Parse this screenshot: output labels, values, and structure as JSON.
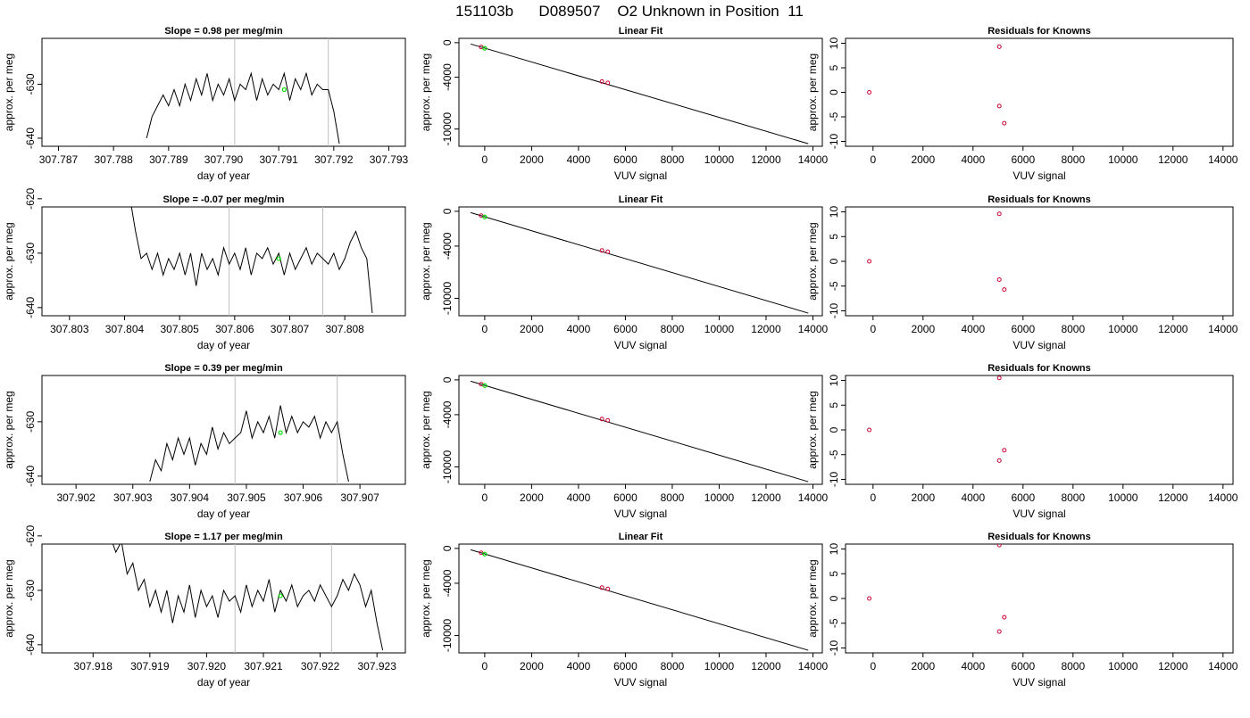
{
  "page_title": "151103b      D089507    O2 Unknown in Position  11",
  "colors": {
    "trace": "#000000",
    "marker_green": "#00dd00",
    "marker_red": "#cc0033",
    "vline": "#bdbdbd",
    "fit_line": "#000000"
  },
  "chart_data": [
    {
      "type": "line",
      "panel": "trace",
      "row": 1,
      "title": "Slope =  0.98  per meg/min",
      "xlabel": "day of year",
      "ylabel": "approx. per meg",
      "xlim": [
        307.7867,
        307.7933
      ],
      "ylim": [
        -641.5,
        -621.5
      ],
      "x_ticks": [
        "307.787",
        "307.788",
        "307.789",
        "307.790",
        "307.791",
        "307.792",
        "307.793"
      ],
      "y_ticks": [
        "-630",
        "-640"
      ],
      "vlines": [
        307.7902,
        307.7919
      ],
      "series": [
        {
          "x": [
            307.7886,
            307.7887,
            307.7888,
            307.7889,
            307.789,
            307.7891,
            307.7892,
            307.7893,
            307.7894,
            307.7895,
            307.7896,
            307.7897,
            307.7898,
            307.7899,
            307.79,
            307.7901,
            307.7902,
            307.7903,
            307.7904,
            307.7905,
            307.7906,
            307.7907,
            307.7908,
            307.7909,
            307.791,
            307.7911,
            307.7912,
            307.7913,
            307.7914,
            307.7915,
            307.7916,
            307.7917,
            307.7918,
            307.7919,
            307.792,
            307.7921
          ],
          "y": [
            -640,
            -636,
            -634,
            -632,
            -634,
            -631,
            -634,
            -630,
            -633,
            -629,
            -632,
            -628,
            -633,
            -630,
            -632,
            -629,
            -633,
            -630,
            -631,
            -628,
            -633,
            -629,
            -632,
            -630,
            -631,
            -628,
            -633,
            -629,
            -631,
            -628,
            -632,
            -630,
            -631,
            -631,
            -635,
            -641
          ]
        }
      ],
      "marker": {
        "x": 307.7911,
        "y": -631
      }
    },
    {
      "type": "scatter",
      "panel": "fit",
      "row": 1,
      "title": "Linear Fit",
      "xlabel": "VUV signal",
      "ylabel": "approx. per meg",
      "xlim": [
        -1100,
        14400
      ],
      "ylim": [
        -12000,
        500
      ],
      "x_ticks": [
        "0",
        "2000",
        "4000",
        "6000",
        "8000",
        "10000",
        "12000",
        "14000"
      ],
      "y_ticks": [
        "0",
        "-4000",
        "-10000"
      ],
      "fit_line": {
        "x": [
          -600,
          13800
        ],
        "y": [
          -150,
          -11700
        ]
      },
      "points_red": [
        {
          "x": -150,
          "y": -500
        },
        {
          "x": 5000,
          "y": -4500
        },
        {
          "x": 5250,
          "y": -4650
        }
      ],
      "points_green": [
        {
          "x": 0,
          "y": -650
        }
      ]
    },
    {
      "type": "scatter",
      "panel": "resid",
      "row": 1,
      "title": "Residuals for Knowns",
      "xlabel": "VUV signal",
      "ylabel": "approx. per meg",
      "xlim": [
        -1100,
        14400
      ],
      "ylim": [
        -11,
        11
      ],
      "x_ticks": [
        "0",
        "2000",
        "4000",
        "6000",
        "8000",
        "10000",
        "12000",
        "14000"
      ],
      "y_ticks": [
        "10",
        "5",
        "0",
        "-5",
        "-10"
      ],
      "points_red": [
        {
          "x": -150,
          "y": 0
        },
        {
          "x": 5050,
          "y": 9.3
        },
        {
          "x": 5050,
          "y": -2.8
        },
        {
          "x": 5250,
          "y": -6.3
        }
      ]
    },
    {
      "type": "line",
      "panel": "trace",
      "row": 2,
      "title": "Slope =  -0.07  per meg/min",
      "xlabel": "day of year",
      "ylabel": "approx. per meg",
      "xlim": [
        307.8025,
        307.8091
      ],
      "ylim": [
        -641.5,
        -621.5
      ],
      "x_ticks": [
        "307.803",
        "307.804",
        "307.805",
        "307.806",
        "307.807",
        "307.808"
      ],
      "y_ticks": [
        "-620",
        "-630",
        "-640"
      ],
      "vlines": [
        307.8059,
        307.8076
      ],
      "series": [
        {
          "x": [
            307.8041,
            307.8042,
            307.8043,
            307.8044,
            307.8045,
            307.8046,
            307.8047,
            307.8048,
            307.8049,
            307.805,
            307.8051,
            307.8052,
            307.8053,
            307.8054,
            307.8055,
            307.8056,
            307.8057,
            307.8058,
            307.8059,
            307.806,
            307.8061,
            307.8062,
            307.8063,
            307.8064,
            307.8065,
            307.8066,
            307.8067,
            307.8068,
            307.8069,
            307.807,
            307.8071,
            307.8072,
            307.8073,
            307.8074,
            307.8075,
            307.8076,
            307.8077,
            307.8078,
            307.8079,
            307.808,
            307.8081,
            307.8082,
            307.8083,
            307.8084,
            307.8085
          ],
          "y": [
            -620,
            -626,
            -631,
            -630,
            -633,
            -630,
            -634,
            -631,
            -633,
            -630,
            -634,
            -630,
            -636,
            -630,
            -633,
            -631,
            -634,
            -629,
            -632,
            -630,
            -633,
            -629,
            -634,
            -630,
            -631,
            -629,
            -632,
            -630,
            -634,
            -630,
            -633,
            -631,
            -629,
            -632,
            -630,
            -631,
            -632,
            -630,
            -633,
            -631,
            -628,
            -626,
            -629,
            -631,
            -641
          ]
        }
      ],
      "marker": {
        "x": 307.8068,
        "y": -631
      }
    },
    {
      "type": "scatter",
      "panel": "fit",
      "row": 2,
      "title": "Linear Fit",
      "xlabel": "VUV signal",
      "ylabel": "approx. per meg",
      "xlim": [
        -1100,
        14400
      ],
      "ylim": [
        -12000,
        500
      ],
      "x_ticks": [
        "0",
        "2000",
        "4000",
        "6000",
        "8000",
        "10000",
        "12000",
        "14000"
      ],
      "y_ticks": [
        "0",
        "-4000",
        "-10000"
      ],
      "fit_line": {
        "x": [
          -600,
          13800
        ],
        "y": [
          -150,
          -11700
        ]
      },
      "points_red": [
        {
          "x": -150,
          "y": -500
        },
        {
          "x": 5000,
          "y": -4500
        },
        {
          "x": 5250,
          "y": -4650
        }
      ],
      "points_green": [
        {
          "x": 0,
          "y": -650
        }
      ]
    },
    {
      "type": "scatter",
      "panel": "resid",
      "row": 2,
      "title": "Residuals for Knowns",
      "xlabel": "VUV signal",
      "ylabel": "approx. per meg",
      "xlim": [
        -1100,
        14400
      ],
      "ylim": [
        -11,
        11
      ],
      "x_ticks": [
        "0",
        "2000",
        "4000",
        "6000",
        "8000",
        "10000",
        "12000",
        "14000"
      ],
      "y_ticks": [
        "10",
        "5",
        "0",
        "-5",
        "-10"
      ],
      "points_red": [
        {
          "x": -150,
          "y": 0
        },
        {
          "x": 5050,
          "y": 9.6
        },
        {
          "x": 5050,
          "y": -3.7
        },
        {
          "x": 5250,
          "y": -5.7
        }
      ]
    },
    {
      "type": "line",
      "panel": "trace",
      "row": 3,
      "title": "Slope =  0.39  per meg/min",
      "xlabel": "day of year",
      "ylabel": "approx. per meg",
      "xlim": [
        307.9014,
        307.9078
      ],
      "ylim": [
        -641.5,
        -621.5
      ],
      "x_ticks": [
        "307.902",
        "307.903",
        "307.904",
        "307.905",
        "307.906",
        "307.907"
      ],
      "y_ticks": [
        "-630",
        "-640"
      ],
      "vlines": [
        307.9048,
        307.9066
      ],
      "series": [
        {
          "x": [
            307.9033,
            307.9034,
            307.9035,
            307.9036,
            307.9037,
            307.9038,
            307.9039,
            307.904,
            307.9041,
            307.9042,
            307.9043,
            307.9044,
            307.9045,
            307.9046,
            307.9047,
            307.9048,
            307.9049,
            307.905,
            307.9051,
            307.9052,
            307.9053,
            307.9054,
            307.9055,
            307.9056,
            307.9057,
            307.9058,
            307.9059,
            307.906,
            307.9061,
            307.9062,
            307.9063,
            307.9064,
            307.9065,
            307.9066,
            307.9067,
            307.9068
          ],
          "y": [
            -641,
            -637,
            -639,
            -634,
            -637,
            -633,
            -636,
            -633,
            -638,
            -634,
            -636,
            -631,
            -635,
            -632,
            -634,
            -633,
            -632,
            -628,
            -633,
            -630,
            -632,
            -629,
            -633,
            -627,
            -632,
            -629,
            -632,
            -630,
            -631,
            -629,
            -633,
            -630,
            -632,
            -630,
            -636,
            -641
          ]
        }
      ],
      "marker": {
        "x": 307.9056,
        "y": -632
      }
    },
    {
      "type": "scatter",
      "panel": "fit",
      "row": 3,
      "title": "",
      "xlabel": "VUV signal",
      "ylabel": "approx. per meg",
      "xlim": [
        -1100,
        14400
      ],
      "ylim": [
        -12000,
        500
      ],
      "x_ticks": [
        "0",
        "2000",
        "4000",
        "6000",
        "8000",
        "10000",
        "12000",
        "14000"
      ],
      "y_ticks": [
        "0",
        "-4000",
        "-10000"
      ],
      "fit_line": {
        "x": [
          -600,
          13800
        ],
        "y": [
          -150,
          -11700
        ]
      },
      "points_red": [
        {
          "x": -150,
          "y": -500
        },
        {
          "x": 5000,
          "y": -4500
        },
        {
          "x": 5250,
          "y": -4650
        }
      ],
      "points_green": [
        {
          "x": 0,
          "y": -650
        }
      ]
    },
    {
      "type": "scatter",
      "panel": "resid",
      "row": 3,
      "title": "Residuals for Knowns",
      "xlabel": "VUV signal",
      "ylabel": "approx. per meg",
      "xlim": [
        -1100,
        14400
      ],
      "ylim": [
        -11,
        11
      ],
      "x_ticks": [
        "0",
        "2000",
        "4000",
        "6000",
        "8000",
        "10000",
        "12000",
        "14000"
      ],
      "y_ticks": [
        "10",
        "5",
        "0",
        "-5",
        "-10"
      ],
      "points_red": [
        {
          "x": -150,
          "y": 0
        },
        {
          "x": 5050,
          "y": 10.5
        },
        {
          "x": 5050,
          "y": -6.2
        },
        {
          "x": 5250,
          "y": -4.1
        }
      ]
    },
    {
      "type": "line",
      "panel": "trace",
      "row": 4,
      "title": "Slope =  1.17  per meg/min",
      "xlabel": "day of year",
      "ylabel": "approx. per meg",
      "xlim": [
        307.9171,
        307.9235
      ],
      "ylim": [
        -641.5,
        -621.5
      ],
      "x_ticks": [
        "307.918",
        "307.919",
        "307.920",
        "307.921",
        "307.922",
        "307.923"
      ],
      "y_ticks": [
        "-620",
        "-630",
        "-640"
      ],
      "vlines": [
        307.9205,
        307.9222
      ],
      "series": [
        {
          "x": [
            307.9183,
            307.9184,
            307.9185,
            307.9186,
            307.9187,
            307.9188,
            307.9189,
            307.919,
            307.9191,
            307.9192,
            307.9193,
            307.9194,
            307.9195,
            307.9196,
            307.9197,
            307.9198,
            307.9199,
            307.92,
            307.9201,
            307.9202,
            307.9203,
            307.9204,
            307.9205,
            307.9206,
            307.9207,
            307.9208,
            307.9209,
            307.921,
            307.9211,
            307.9212,
            307.9213,
            307.9214,
            307.9215,
            307.9216,
            307.9217,
            307.9218,
            307.9219,
            307.922,
            307.9221,
            307.9222,
            307.9223,
            307.9224,
            307.9225,
            307.9226,
            307.9227,
            307.9228,
            307.9229,
            307.923,
            307.9231
          ],
          "y": [
            -620,
            -623,
            -621,
            -627,
            -625,
            -630,
            -628,
            -633,
            -630,
            -634,
            -630,
            -636,
            -631,
            -634,
            -629,
            -635,
            -630,
            -633,
            -631,
            -635,
            -630,
            -632,
            -631,
            -634,
            -629,
            -633,
            -630,
            -632,
            -628,
            -634,
            -630,
            -632,
            -629,
            -633,
            -631,
            -630,
            -632,
            -629,
            -631,
            -633,
            -631,
            -628,
            -630,
            -627,
            -629,
            -633,
            -630,
            -636,
            -641
          ]
        }
      ],
      "marker": {
        "x": 307.9213,
        "y": -631
      }
    },
    {
      "type": "scatter",
      "panel": "fit",
      "row": 4,
      "title": "Linear Fit",
      "xlabel": "VUV signal",
      "ylabel": "approx. per meg",
      "xlim": [
        -1100,
        14400
      ],
      "ylim": [
        -12000,
        500
      ],
      "x_ticks": [
        "0",
        "2000",
        "4000",
        "6000",
        "8000",
        "10000",
        "12000",
        "14000"
      ],
      "y_ticks": [
        "0",
        "-4000",
        "-10000"
      ],
      "fit_line": {
        "x": [
          -600,
          13800
        ],
        "y": [
          -150,
          -11700
        ]
      },
      "points_red": [
        {
          "x": -150,
          "y": -500
        },
        {
          "x": 5000,
          "y": -4500
        },
        {
          "x": 5250,
          "y": -4650
        }
      ],
      "points_green": [
        {
          "x": 0,
          "y": -650
        }
      ]
    },
    {
      "type": "scatter",
      "panel": "resid",
      "row": 4,
      "title": "Residuals for Knowns",
      "xlabel": "VUV signal",
      "ylabel": "approx. per meg",
      "xlim": [
        -1100,
        14400
      ],
      "ylim": [
        -11,
        11
      ],
      "x_ticks": [
        "0",
        "2000",
        "4000",
        "6000",
        "8000",
        "10000",
        "12000",
        "14000"
      ],
      "y_ticks": [
        "10",
        "5",
        "0",
        "-5",
        "-10"
      ],
      "points_red": [
        {
          "x": -150,
          "y": 0
        },
        {
          "x": 5050,
          "y": 10.8
        },
        {
          "x": 5050,
          "y": -6.7
        },
        {
          "x": 5250,
          "y": -3.8
        }
      ]
    }
  ]
}
